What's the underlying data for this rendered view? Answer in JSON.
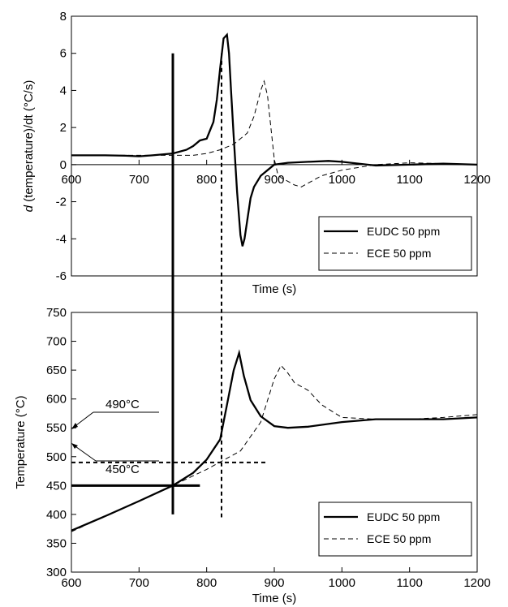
{
  "chart_data": [
    {
      "type": "line",
      "title": "",
      "xlabel": "Time (s)",
      "ylabel_italic": "d",
      "ylabel_rest": " (temperature)/dt (°C/s)",
      "xlim": [
        600,
        1200
      ],
      "ylim": [
        -6,
        8
      ],
      "x_ticks": [
        600,
        700,
        800,
        900,
        1000,
        1100,
        1200
      ],
      "x_tick_labels": [
        "600",
        "700",
        "800",
        "900",
        "1000",
        "1100",
        "1200"
      ],
      "y_ticks": [
        -6,
        -4,
        -2,
        0,
        2,
        4,
        6,
        8
      ],
      "y_tick_labels": [
        "-6",
        "-4",
        "-2",
        "0",
        "2",
        "4",
        "6",
        "8"
      ],
      "grid": false,
      "legend_position": "bottom-right",
      "series": [
        {
          "name": "EUDC 50 ppm",
          "style": "solid",
          "x": [
            600,
            650,
            680,
            700,
            720,
            750,
            770,
            780,
            790,
            800,
            810,
            815,
            820,
            825,
            830,
            833,
            836,
            840,
            845,
            850,
            853,
            856,
            860,
            865,
            870,
            880,
            890,
            900,
            920,
            950,
            980,
            1000,
            1050,
            1100,
            1150,
            1200
          ],
          "y": [
            0.5,
            0.5,
            0.48,
            0.45,
            0.5,
            0.6,
            0.8,
            1.0,
            1.3,
            1.4,
            2.3,
            3.5,
            5.2,
            6.8,
            7.0,
            6.0,
            4.0,
            1.5,
            -1.5,
            -3.8,
            -4.4,
            -4.0,
            -3.0,
            -1.8,
            -1.2,
            -0.6,
            -0.3,
            0.0,
            0.1,
            0.15,
            0.2,
            0.15,
            -0.05,
            0.0,
            0.05,
            0.0
          ]
        },
        {
          "name": "ECE 50 ppm",
          "style": "dashed",
          "x": [
            600,
            650,
            700,
            750,
            780,
            800,
            820,
            840,
            860,
            870,
            880,
            885,
            890,
            895,
            900,
            905,
            910,
            920,
            930,
            940,
            950,
            970,
            1000,
            1050,
            1100,
            1150,
            1200
          ],
          "y": [
            0.5,
            0.5,
            0.5,
            0.5,
            0.5,
            0.6,
            0.8,
            1.1,
            1.7,
            2.6,
            4.0,
            4.5,
            3.7,
            2.0,
            0.3,
            -0.5,
            -0.7,
            -0.9,
            -1.1,
            -1.2,
            -1.0,
            -0.6,
            -0.3,
            0.0,
            0.1,
            0.05,
            0.0
          ]
        }
      ],
      "annotations": {
        "vertical_line_solid_x": 750,
        "vertical_line_dashed_x": 822
      }
    },
    {
      "type": "line",
      "title": "",
      "xlabel": "Time (s)",
      "ylabel": "Temperature (°C)",
      "xlim": [
        600,
        1200
      ],
      "ylim": [
        300,
        750
      ],
      "x_ticks": [
        600,
        700,
        800,
        900,
        1000,
        1100,
        1200
      ],
      "x_tick_labels": [
        "600",
        "700",
        "800",
        "900",
        "1000",
        "1100",
        "1200"
      ],
      "y_ticks": [
        300,
        350,
        400,
        450,
        500,
        550,
        600,
        650,
        700,
        750
      ],
      "y_tick_labels": [
        "300",
        "350",
        "400",
        "450",
        "500",
        "550",
        "600",
        "650",
        "700",
        "750"
      ],
      "grid": false,
      "legend_position": "bottom-right",
      "series": [
        {
          "name": "EUDC 50 ppm",
          "style": "solid",
          "x": [
            600,
            650,
            700,
            750,
            780,
            800,
            820,
            830,
            840,
            848,
            855,
            865,
            880,
            900,
            920,
            950,
            1000,
            1050,
            1100,
            1150,
            1200
          ],
          "y": [
            372,
            397,
            423,
            450,
            472,
            495,
            530,
            590,
            650,
            680,
            640,
            598,
            570,
            553,
            550,
            552,
            560,
            565,
            565,
            565,
            568
          ]
        },
        {
          "name": "ECE 50 ppm",
          "style": "dashed",
          "x": [
            600,
            650,
            700,
            750,
            800,
            850,
            880,
            900,
            910,
            920,
            930,
            950,
            970,
            1000,
            1050,
            1100,
            1150,
            1200
          ],
          "y": [
            370,
            397,
            423,
            450,
            478,
            510,
            560,
            635,
            658,
            645,
            628,
            615,
            590,
            568,
            565,
            565,
            568,
            573
          ]
        }
      ],
      "annotations": {
        "label_490": "490°C",
        "label_450": "450°C",
        "hline_490_dashed": 490,
        "hline_450_solid": 450,
        "vertical_line_solid_x": 750,
        "vertical_line_dashed_x": 822
      }
    }
  ]
}
